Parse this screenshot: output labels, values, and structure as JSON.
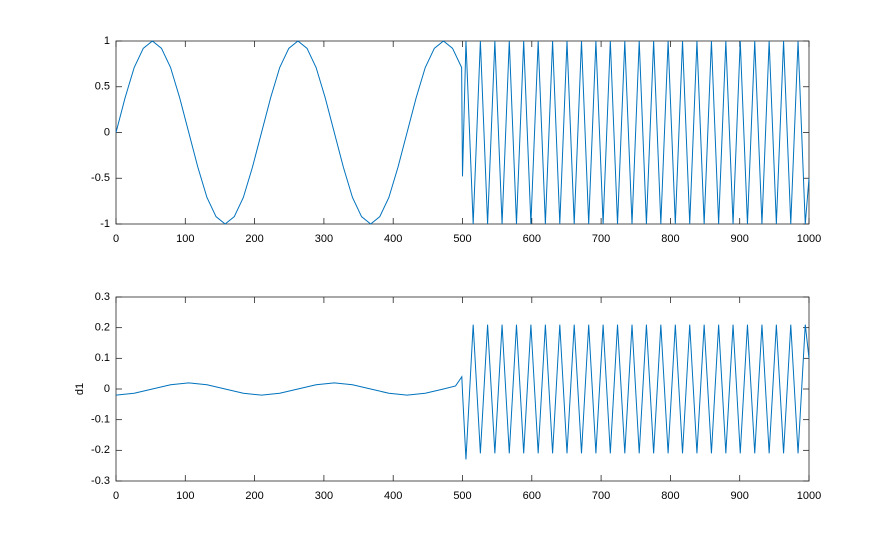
{
  "chart_data": [
    {
      "type": "line",
      "x": [
        0,
        13.125,
        26.25,
        39.375,
        52.5,
        65.625,
        78.75,
        91.875,
        105,
        118.125,
        131.25,
        144.375,
        157.5,
        170.625,
        183.75,
        196.875,
        210,
        223.125,
        236.25,
        249.375,
        262.5,
        275.625,
        288.75,
        301.875,
        315,
        328.125,
        341.25,
        354.375,
        367.5,
        380.625,
        393.75,
        406.875,
        420,
        433.125,
        446.25,
        459.375,
        472.5,
        485.625,
        498.75,
        500,
        505,
        515.4,
        525.8,
        536.2,
        546.7,
        557.1,
        567.5,
        577.9,
        588.3,
        598.7,
        609.2,
        619.6,
        630,
        640.4,
        650.8,
        661.2,
        671.7,
        682.1,
        692.5,
        702.9,
        713.3,
        723.7,
        734.2,
        744.6,
        755,
        765.4,
        775.8,
        786.2,
        796.7,
        807.1,
        817.5,
        827.9,
        838.3,
        848.7,
        859.2,
        869.6,
        880,
        890.4,
        900.8,
        911.2,
        921.7,
        932.1,
        942.5,
        952.9,
        963.3,
        973.7,
        984.2,
        994.6,
        1000
      ],
      "series": [
        {
          "color": "#0072bd",
          "values": [
            0,
            0.38,
            0.71,
            0.92,
            1,
            0.92,
            0.71,
            0.38,
            0,
            -0.38,
            -0.71,
            -0.92,
            -1,
            -0.92,
            -0.71,
            -0.38,
            0,
            0.38,
            0.71,
            0.92,
            1,
            0.92,
            0.71,
            0.38,
            0,
            -0.38,
            -0.71,
            -0.92,
            -1,
            -0.92,
            -0.71,
            -0.38,
            0,
            0.38,
            0.71,
            0.92,
            1,
            0.92,
            0.71,
            -0.48,
            1,
            -1,
            1,
            -1,
            1,
            -1,
            1,
            -1,
            1,
            -1,
            1,
            -1,
            1,
            -1,
            1,
            -1,
            1,
            -1,
            1,
            -1,
            1,
            -1,
            1,
            -1,
            1,
            -1,
            1,
            -1,
            1,
            -1,
            1,
            -1,
            1,
            -1,
            1,
            -1,
            1,
            -1,
            1,
            -1,
            1,
            -1,
            1,
            -1,
            1,
            -1,
            1,
            -1,
            -0.5
          ]
        }
      ],
      "xlim": [
        0,
        1000
      ],
      "xticks": [
        0,
        100,
        200,
        300,
        400,
        500,
        600,
        700,
        800,
        900,
        1000
      ],
      "ylim": [
        -1,
        1
      ],
      "yticks": [
        -1,
        -0.5,
        0,
        0.5,
        1
      ]
    },
    {
      "type": "line",
      "ylabel": "d1",
      "x": [
        0,
        26.25,
        52.5,
        78.75,
        105,
        131.25,
        157.5,
        183.75,
        210,
        236.25,
        262.5,
        288.75,
        315,
        341.25,
        367.5,
        393.75,
        420,
        446.25,
        472.5,
        490,
        499,
        500,
        505,
        515.4,
        525.8,
        536.2,
        546.7,
        557.1,
        567.5,
        577.9,
        588.3,
        598.7,
        609.2,
        619.6,
        630,
        640.4,
        650.8,
        661.2,
        671.7,
        682.1,
        692.5,
        702.9,
        713.3,
        723.7,
        734.2,
        744.6,
        755,
        765.4,
        775.8,
        786.2,
        796.7,
        807.1,
        817.5,
        827.9,
        838.3,
        848.7,
        859.2,
        869.6,
        880,
        890.4,
        900.8,
        911.2,
        921.7,
        932.1,
        942.5,
        952.9,
        963.3,
        973.7,
        984.2,
        994.6,
        1000
      ],
      "series": [
        {
          "color": "#0072bd",
          "values": [
            -0.02,
            -0.014,
            0,
            0.014,
            0.02,
            0.014,
            0,
            -0.014,
            -0.02,
            -0.014,
            0,
            0.014,
            0.02,
            0.014,
            0,
            -0.014,
            -0.02,
            -0.014,
            0,
            0.01,
            0.04,
            -0.01,
            -0.23,
            0.21,
            -0.21,
            0.21,
            -0.21,
            0.21,
            -0.21,
            0.21,
            -0.21,
            0.21,
            -0.21,
            0.21,
            -0.21,
            0.21,
            -0.21,
            0.21,
            -0.21,
            0.21,
            -0.21,
            0.21,
            -0.21,
            0.21,
            -0.21,
            0.21,
            -0.21,
            0.21,
            -0.21,
            0.21,
            -0.21,
            0.21,
            -0.21,
            0.21,
            -0.21,
            0.21,
            -0.21,
            0.21,
            -0.21,
            0.21,
            -0.21,
            0.21,
            -0.21,
            0.21,
            -0.21,
            0.21,
            -0.21,
            0.21,
            -0.21,
            0.21,
            0.1
          ]
        }
      ],
      "xlim": [
        0,
        1000
      ],
      "xticks": [
        0,
        100,
        200,
        300,
        400,
        500,
        600,
        700,
        800,
        900,
        1000
      ],
      "ylim": [
        -0.3,
        0.3
      ],
      "yticks": [
        -0.3,
        -0.2,
        -0.1,
        0,
        0.1,
        0.2,
        0.3
      ]
    }
  ]
}
